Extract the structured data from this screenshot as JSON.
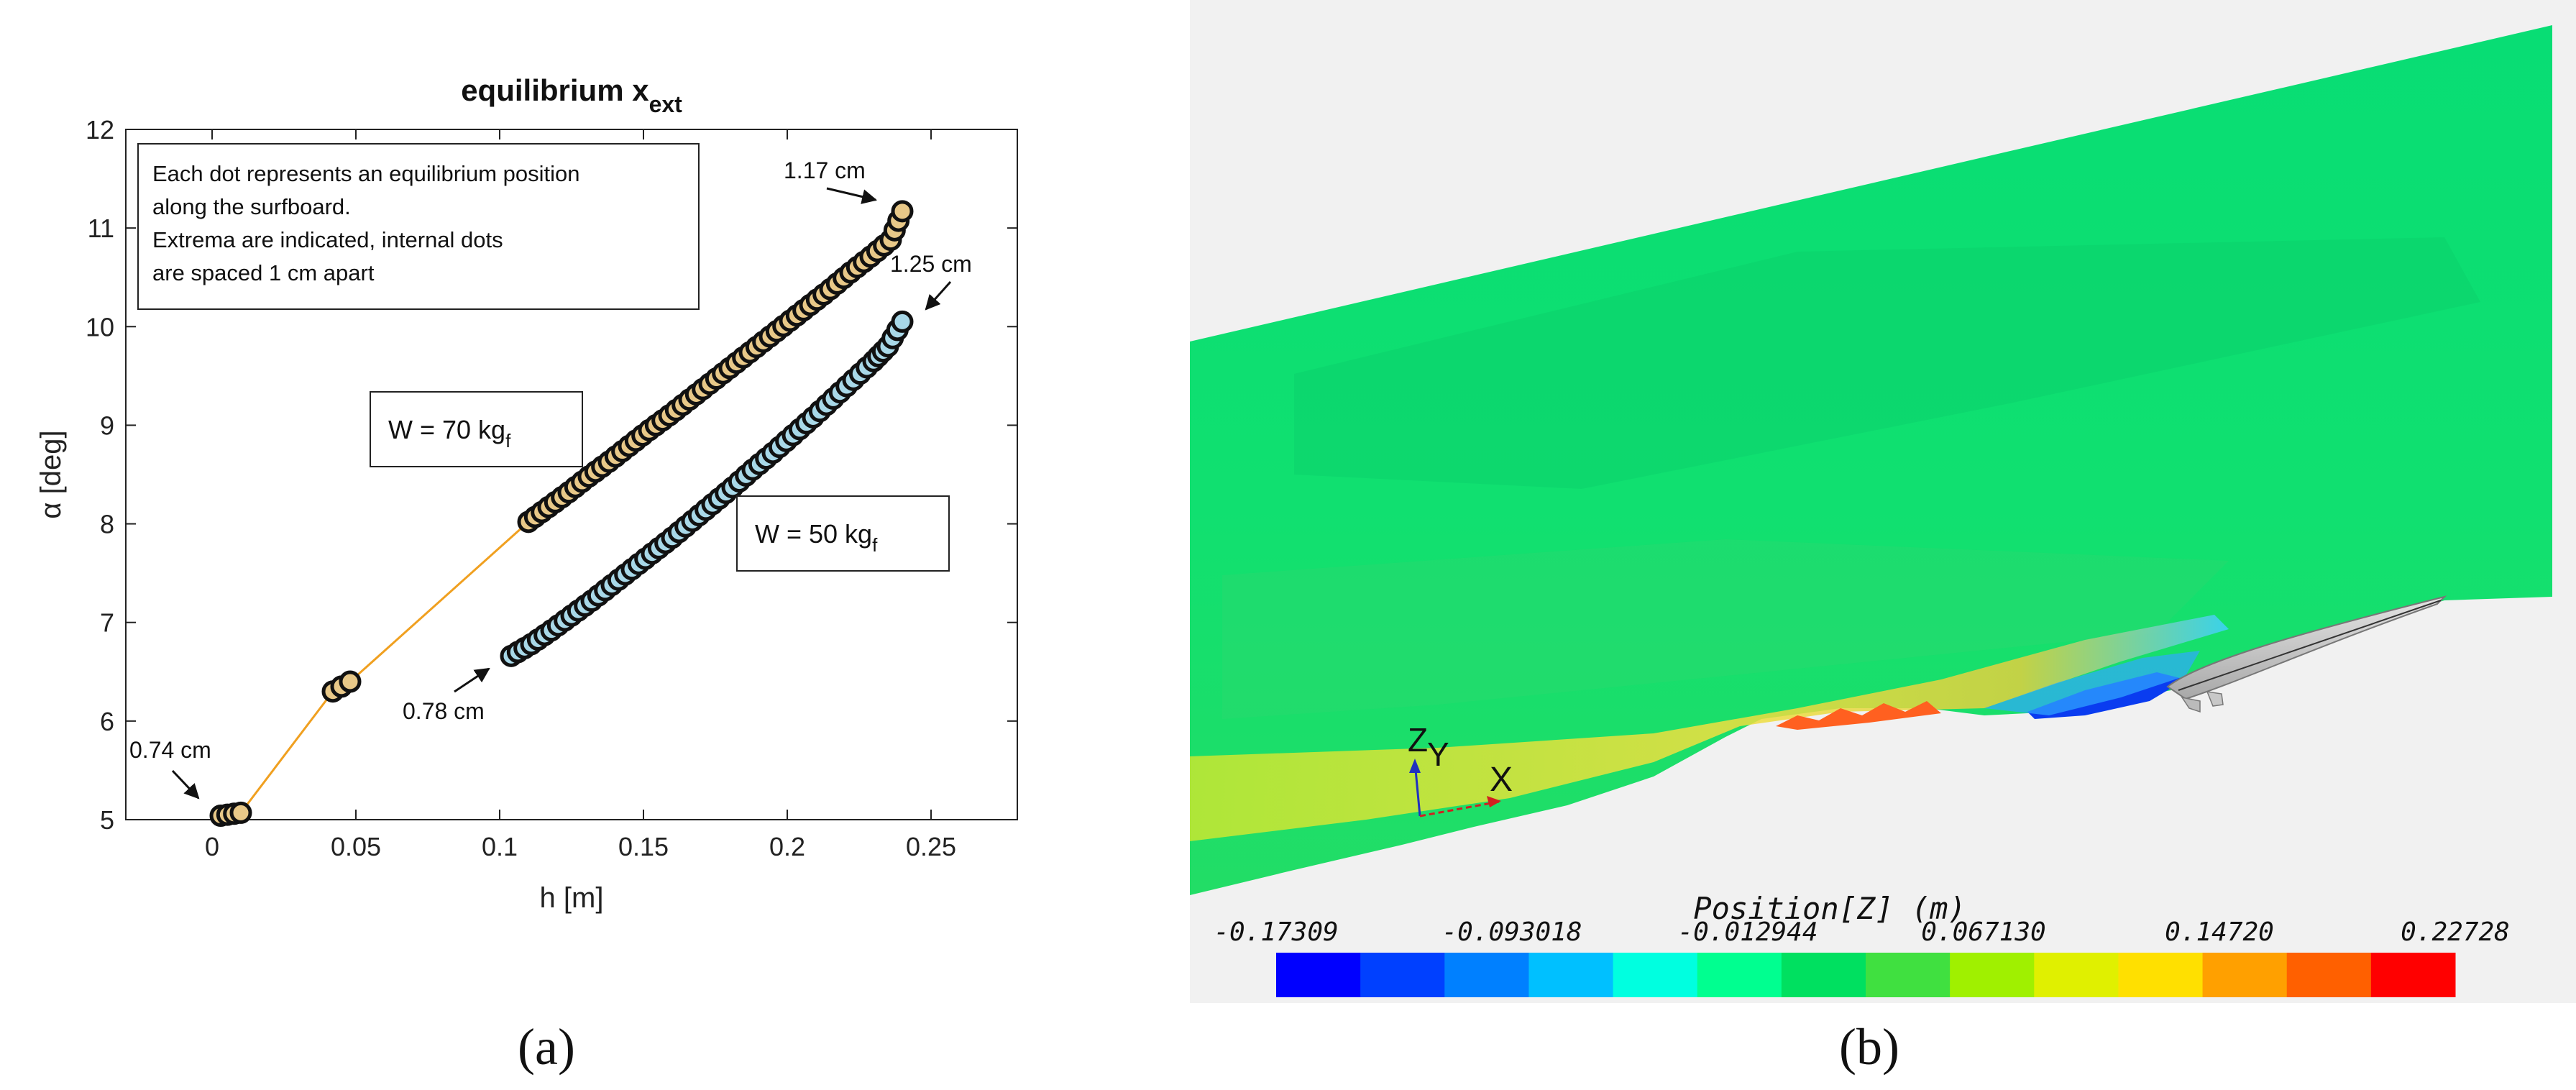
{
  "panel_a": {
    "caption": "(a)",
    "title_main": "equilibrium x",
    "title_sub": "ext",
    "xlabel": "h [m]",
    "ylabel": "α [deg]",
    "info_box": [
      "Each dot represents an equilibrium position",
      "along the surfboard.",
      "Extrema are indicated, internal dots",
      "are spaced 1 cm apart"
    ],
    "label_w70": "W = 70 kg",
    "label_w50": "W = 50 kg",
    "label_sub": "f",
    "ann_117": "1.17 cm",
    "ann_125": "1.25 cm",
    "ann_078": "0.78 cm",
    "ann_074": "0.74 cm",
    "colors": {
      "connector": "#f0a020",
      "dot_edge": "#111111",
      "fill_70": "#e8c888",
      "fill_50": "#a8d8e8"
    }
  },
  "panel_b": {
    "caption": "(b)",
    "colorbar_title": "Position[Z] (m)",
    "colorbar_ticks": [
      "-0.17309",
      "-0.093018",
      "-0.012944",
      "0.067130",
      "0.14720",
      "0.22728"
    ],
    "axis_labels": {
      "x": "X",
      "y": "Y",
      "z": "Z"
    },
    "colors": [
      "#0000ff",
      "#0040ff",
      "#0080ff",
      "#00c0ff",
      "#00ffe0",
      "#00ff90",
      "#00e060",
      "#40e040",
      "#a0f000",
      "#e0f000",
      "#ffe000",
      "#ffa000",
      "#ff6000",
      "#ff0000"
    ]
  },
  "chart_data": {
    "type": "scatter",
    "title": "equilibrium x_ext",
    "xlabel": "h [m]",
    "ylabel": "α [deg]",
    "xlim": [
      -0.03,
      0.28
    ],
    "ylim": [
      5,
      12
    ],
    "x_ticks": [
      0,
      0.05,
      0.1,
      0.15,
      0.2,
      0.25
    ],
    "y_ticks": [
      5,
      6,
      7,
      8,
      9,
      10,
      11,
      12
    ],
    "grid": false,
    "series": [
      {
        "name": "W = 70 kgf",
        "points": [
          [
            0.003,
            5.04
          ],
          [
            0.01,
            5.07
          ],
          [
            0.042,
            6.3
          ],
          [
            0.045,
            6.35
          ],
          [
            0.048,
            6.4
          ],
          [
            0.11,
            8.02
          ],
          [
            0.117,
            8.17
          ],
          [
            0.124,
            8.32
          ],
          [
            0.131,
            8.48
          ],
          [
            0.138,
            8.63
          ],
          [
            0.145,
            8.79
          ],
          [
            0.152,
            8.95
          ],
          [
            0.159,
            9.1
          ],
          [
            0.166,
            9.26
          ],
          [
            0.173,
            9.42
          ],
          [
            0.18,
            9.58
          ],
          [
            0.187,
            9.74
          ],
          [
            0.194,
            9.9
          ],
          [
            0.201,
            10.06
          ],
          [
            0.208,
            10.22
          ],
          [
            0.215,
            10.38
          ],
          [
            0.222,
            10.55
          ],
          [
            0.229,
            10.71
          ],
          [
            0.236,
            10.88
          ],
          [
            0.24,
            11.17
          ]
        ]
      },
      {
        "name": "W = 50 kgf",
        "points": [
          [
            0.104,
            6.66
          ],
          [
            0.111,
            6.78
          ],
          [
            0.118,
            6.92
          ],
          [
            0.125,
            7.07
          ],
          [
            0.132,
            7.22
          ],
          [
            0.139,
            7.38
          ],
          [
            0.146,
            7.54
          ],
          [
            0.153,
            7.7
          ],
          [
            0.16,
            7.86
          ],
          [
            0.167,
            8.03
          ],
          [
            0.174,
            8.2
          ],
          [
            0.181,
            8.37
          ],
          [
            0.188,
            8.55
          ],
          [
            0.195,
            8.72
          ],
          [
            0.202,
            8.9
          ],
          [
            0.209,
            9.08
          ],
          [
            0.216,
            9.27
          ],
          [
            0.223,
            9.46
          ],
          [
            0.23,
            9.65
          ],
          [
            0.235,
            9.8
          ],
          [
            0.24,
            10.05
          ]
        ]
      }
    ]
  }
}
